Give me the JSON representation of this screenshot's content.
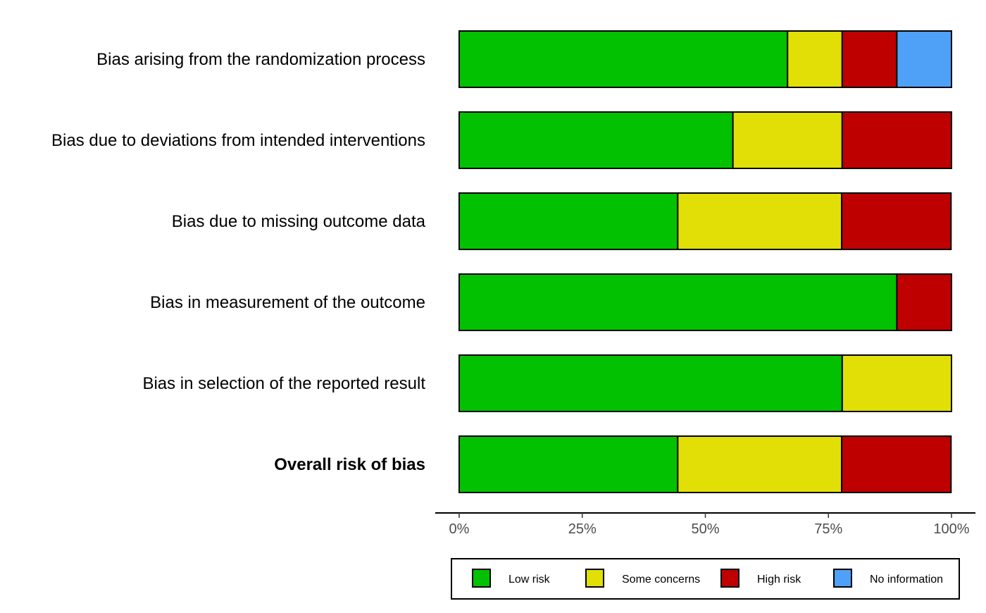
{
  "chart_data": {
    "type": "bar",
    "orientation": "horizontal",
    "stacked": true,
    "title": "",
    "xlabel": "",
    "ylabel": "",
    "xlim": [
      0,
      100
    ],
    "grid": false,
    "legend_position": "bottom",
    "categories": [
      "Bias arising from the randomization process",
      "Bias due to deviations from intended interventions",
      "Bias due to missing outcome data",
      "Bias in measurement of the outcome",
      "Bias in selection of the reported result",
      "Overall risk of bias"
    ],
    "bold_categories": [
      "Overall risk of bias"
    ],
    "x_ticks": [
      {
        "value": 0,
        "label": "0%"
      },
      {
        "value": 25,
        "label": "25%"
      },
      {
        "value": 50,
        "label": "50%"
      },
      {
        "value": 75,
        "label": "75%"
      },
      {
        "value": 100,
        "label": "100%"
      }
    ],
    "series": [
      {
        "name": "Low risk",
        "color": "#02C100",
        "values": [
          66.7,
          55.6,
          44.4,
          88.9,
          77.8,
          44.4
        ]
      },
      {
        "name": "Some concerns",
        "color": "#E2DF07",
        "values": [
          11.1,
          22.2,
          33.3,
          0,
          22.2,
          33.3
        ]
      },
      {
        "name": "High risk",
        "color": "#BF0000",
        "values": [
          11.1,
          22.2,
          22.2,
          11.1,
          0,
          22.2
        ]
      },
      {
        "name": "No information",
        "color": "#4EA1F7",
        "values": [
          11.1,
          0,
          0,
          0,
          0,
          0
        ]
      }
    ]
  }
}
